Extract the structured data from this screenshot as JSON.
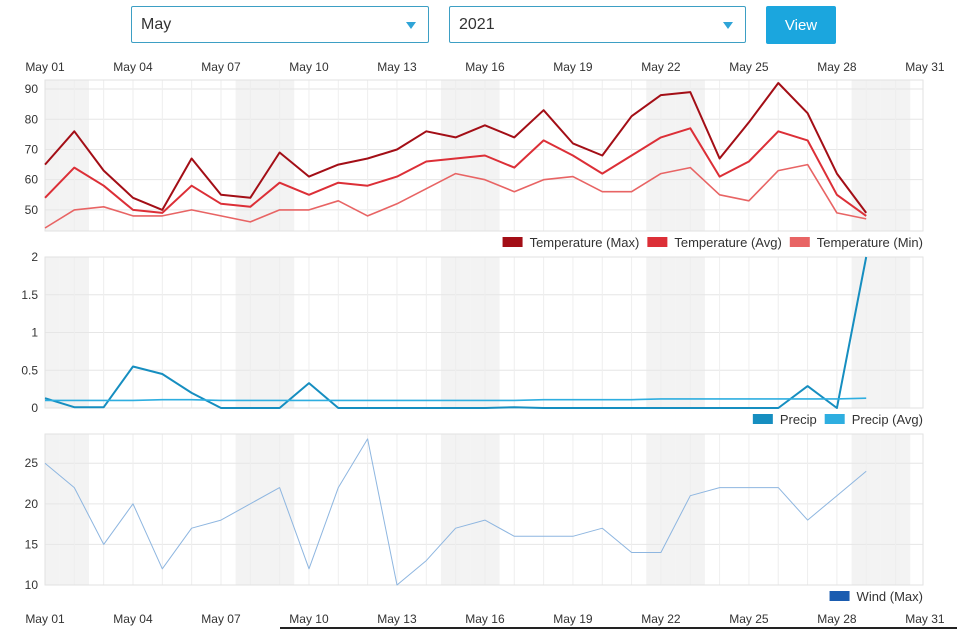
{
  "controls": {
    "month_value": "May",
    "year_value": "2021",
    "view_label": "View"
  },
  "colors": {
    "temp_max": "#a30e16",
    "temp_avg": "#dc2f37",
    "temp_min": "#e86464",
    "precip": "#168ec0",
    "precip_avg": "#2eaee0",
    "wind_max": "#8eb6e0",
    "wind_legend": "#1a5cb0"
  },
  "chart_data": [
    {
      "type": "line",
      "x_ticks": [
        "May 01",
        "May 04",
        "May 07",
        "May 10",
        "May 13",
        "May 16",
        "May 19",
        "May 22",
        "May 25",
        "May 28",
        "May 31"
      ],
      "y_ticks": [
        "90",
        "80",
        "70",
        "60",
        "50"
      ],
      "ylim": [
        43,
        93
      ],
      "series": [
        {
          "name": "Temperature (Max)",
          "values": [
            65,
            76,
            63,
            54,
            50,
            67,
            55,
            54,
            69,
            61,
            65,
            67,
            70,
            76,
            74,
            78,
            74,
            83,
            72,
            68,
            81,
            88,
            89,
            67,
            79,
            92,
            82,
            62,
            49
          ]
        },
        {
          "name": "Temperature (Avg)",
          "values": [
            54,
            64,
            58,
            50,
            49,
            58,
            52,
            51,
            59,
            55,
            59,
            58,
            61,
            66,
            67,
            68,
            64,
            73,
            68,
            62,
            68,
            74,
            77,
            61,
            66,
            76,
            73,
            55,
            48
          ]
        },
        {
          "name": "Temperature (Min)",
          "values": [
            44,
            50,
            51,
            48,
            48,
            50,
            48,
            46,
            50,
            50,
            53,
            48,
            52,
            57,
            62,
            60,
            56,
            60,
            61,
            56,
            56,
            62,
            64,
            55,
            53,
            63,
            65,
            49,
            47
          ]
        }
      ]
    },
    {
      "type": "line",
      "x_ticks": [
        "May 01",
        "May 04",
        "May 07",
        "May 10",
        "May 13",
        "May 16",
        "May 19",
        "May 22",
        "May 25",
        "May 28",
        "May 31"
      ],
      "y_ticks": [
        "2",
        "1.5",
        "1",
        "0.5",
        "0"
      ],
      "ylim": [
        0,
        2
      ],
      "series": [
        {
          "name": "Precip",
          "values": [
            0.13,
            0.01,
            0.01,
            0.55,
            0.45,
            0.2,
            0,
            0,
            0,
            0.33,
            0,
            0,
            0,
            0,
            0,
            0,
            0.01,
            0,
            0,
            0,
            0,
            0,
            0,
            0,
            0,
            0,
            0.29,
            0,
            2.0
          ]
        },
        {
          "name": "Precip (Avg)",
          "values": [
            0.1,
            0.1,
            0.1,
            0.1,
            0.11,
            0.11,
            0.1,
            0.1,
            0.1,
            0.1,
            0.1,
            0.1,
            0.1,
            0.1,
            0.1,
            0.1,
            0.1,
            0.11,
            0.11,
            0.11,
            0.11,
            0.12,
            0.12,
            0.12,
            0.12,
            0.12,
            0.12,
            0.12,
            0.13
          ]
        }
      ]
    },
    {
      "type": "line",
      "x_ticks": [
        "May 01",
        "May 04",
        "May 07",
        "May 10",
        "May 13",
        "May 16",
        "May 19",
        "May 22",
        "May 25",
        "May 28",
        "May 31"
      ],
      "y_ticks": [
        "25",
        "20",
        "15",
        "10"
      ],
      "ylim": [
        10,
        28.6
      ],
      "series": [
        {
          "name": "Wind (Max)",
          "values": [
            25,
            22,
            15,
            20,
            12,
            17,
            18,
            20,
            22,
            12,
            22,
            28,
            10,
            13,
            17,
            18,
            16,
            16,
            16,
            17,
            14,
            14,
            21,
            22,
            22,
            22,
            18,
            21,
            24
          ]
        }
      ]
    }
  ]
}
